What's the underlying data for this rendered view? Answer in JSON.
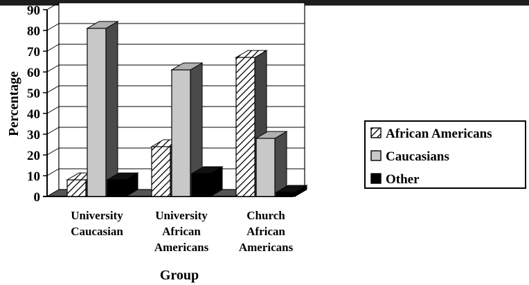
{
  "chart_data": {
    "type": "bar",
    "categories": [
      [
        "University",
        "Caucasian"
      ],
      [
        "University",
        "African",
        "Americans"
      ],
      [
        "Church",
        "African",
        "Americans"
      ]
    ],
    "series": [
      {
        "name": "African Americans",
        "pattern": "hatch",
        "values": [
          8,
          24,
          67
        ]
      },
      {
        "name": "Caucasians",
        "color": "#c8c8c8",
        "values": [
          81,
          61,
          28
        ]
      },
      {
        "name": "Other",
        "color": "#000000",
        "values": [
          8,
          11,
          2
        ]
      }
    ],
    "xlabel": "Group",
    "ylabel": "Percentage",
    "ylim": [
      0,
      90
    ],
    "yticks": [
      0,
      10,
      20,
      30,
      40,
      50,
      60,
      70,
      80,
      90
    ],
    "grid": true,
    "legend": "right",
    "style": "3d"
  }
}
